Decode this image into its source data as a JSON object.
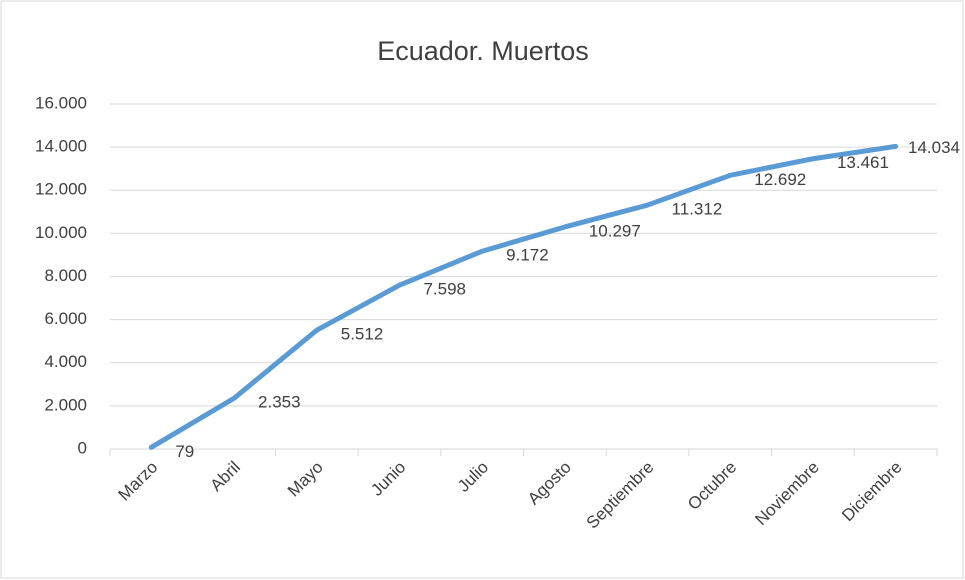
{
  "chart_data": {
    "type": "line",
    "title": "Ecuador. Muertos",
    "categories": [
      "Marzo",
      "Abril",
      "Mayo",
      "Junio",
      "Julio",
      "Agosto",
      "Septiembre",
      "Octubre",
      "Noviembre",
      "Diciembre"
    ],
    "series": [
      {
        "name": "Muertos",
        "color": "#5b9bd5",
        "values": [
          79,
          2353,
          5512,
          7598,
          9172,
          10297,
          11312,
          12692,
          13461,
          14034
        ],
        "value_labels": [
          "79",
          "2.353",
          "5.512",
          "7.598",
          "9.172",
          "10.297",
          "11.312",
          "12.692",
          "13.461",
          "14.034"
        ]
      }
    ],
    "ylim": [
      0,
      16000
    ],
    "yticks": [
      0,
      {
        "value": 2000,
        "label": "2.000"
      },
      {
        "value": 4000,
        "label": "4.000"
      },
      {
        "value": 6000,
        "label": "6.000"
      },
      {
        "value": 8000,
        "label": "8.000"
      },
      {
        "value": 10000,
        "label": "10.000"
      },
      {
        "value": 12000,
        "label": "12.000"
      },
      {
        "value": 14000,
        "label": "14.000"
      },
      {
        "value": 16000,
        "label": "16.000"
      }
    ],
    "grid": true
  }
}
